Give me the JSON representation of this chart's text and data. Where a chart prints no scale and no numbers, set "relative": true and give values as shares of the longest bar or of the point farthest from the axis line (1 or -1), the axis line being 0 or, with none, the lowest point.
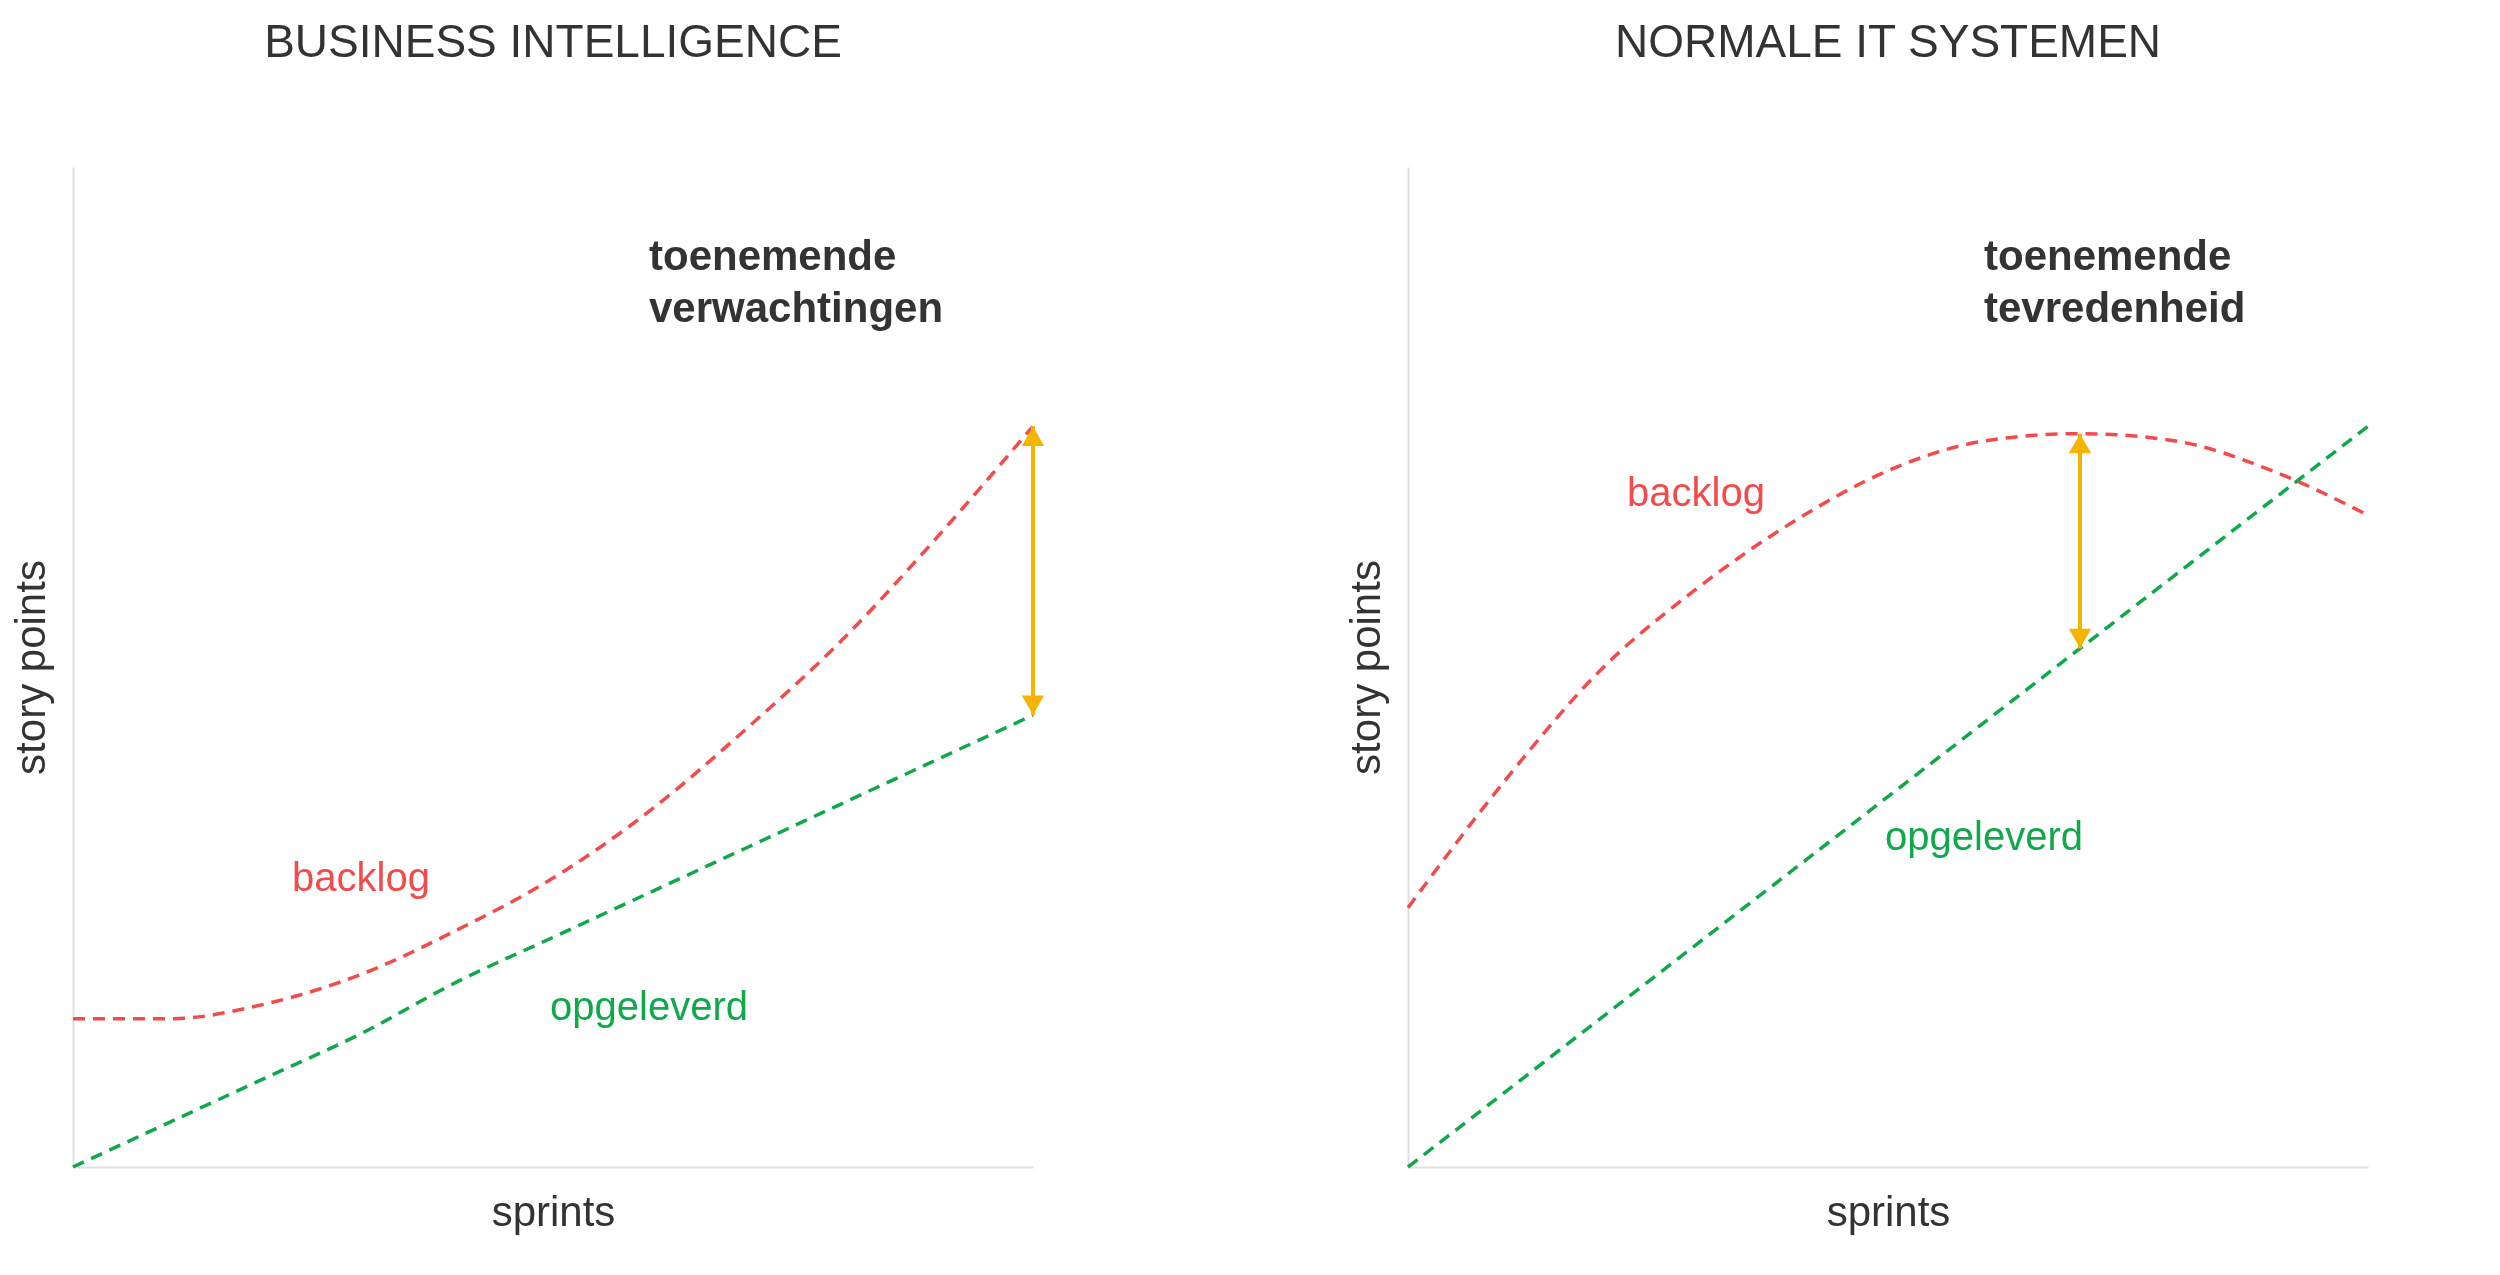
{
  "chart_data": [
    {
      "type": "line",
      "title": "BUSINESS INTELLIGENCE",
      "xlabel": "sprints",
      "ylabel": "story points",
      "relative": true,
      "grid": false,
      "legend": false,
      "tick_labels": false,
      "line_style": "dashed",
      "annotations": [
        "toenemende verwachtingen"
      ],
      "categories": [
        null,
        null,
        null,
        null,
        null,
        null,
        null,
        null,
        null,
        null,
        null
      ],
      "series": [
        {
          "name": "backlog",
          "color": "#f24b4b",
          "values": [
            0.2,
            0.2,
            0.22,
            0.26,
            0.32,
            0.39,
            0.48,
            0.59,
            0.71,
            0.85,
            1.0
          ]
        },
        {
          "name": "opgeleverd",
          "color": "#10a84a",
          "values": [
            0,
            0.06,
            0.12,
            0.18,
            0.25,
            0.31,
            0.37,
            0.43,
            0.49,
            0.55,
            0.61
          ]
        }
      ]
    },
    {
      "type": "line",
      "title": "NORMALE IT SYSTEMEN",
      "xlabel": "sprints",
      "ylabel": "story points",
      "relative": true,
      "grid": false,
      "legend": false,
      "tick_labels": false,
      "line_style": "dashed",
      "annotations": [
        "toenemende tevredenheid"
      ],
      "categories": [
        null,
        null,
        null,
        null,
        null,
        null,
        null,
        null,
        null,
        null,
        null
      ],
      "series": [
        {
          "name": "backlog",
          "color": "#f24b4b",
          "values": [
            0.35,
            0.52,
            0.67,
            0.78,
            0.87,
            0.94,
            0.98,
            0.99,
            0.98,
            0.94,
            0.88
          ]
        },
        {
          "name": "opgeleverd",
          "color": "#10a84a",
          "values": [
            0,
            0.1,
            0.2,
            0.3,
            0.4,
            0.5,
            0.6,
            0.7,
            0.8,
            0.9,
            1.0
          ]
        }
      ]
    }
  ]
}
